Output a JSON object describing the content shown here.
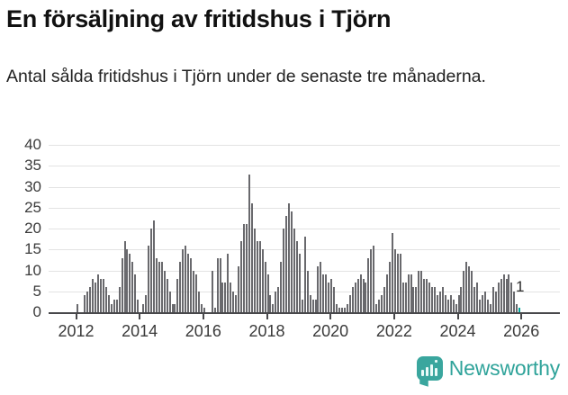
{
  "header": {
    "title": "En försäljning av fritidshus i Tjörn",
    "subtitle": "Antal sålda fritidshus i Tjörn under de senaste tre månaderna."
  },
  "chart_data": {
    "type": "bar",
    "title": "En försäljning av fritidshus i Tjörn",
    "xlabel": "",
    "ylabel": "",
    "x_start": "2012-01",
    "x_interval": "month",
    "values": [
      2,
      0,
      0,
      4,
      5,
      6,
      8,
      7,
      9,
      8,
      8,
      6,
      4,
      2,
      3,
      3,
      6,
      13,
      17,
      15,
      14,
      12,
      9,
      3,
      0,
      2,
      4,
      16,
      20,
      22,
      13,
      12,
      12,
      10,
      8,
      5,
      2,
      2,
      8,
      12,
      15,
      16,
      14,
      13,
      10,
      9,
      5,
      2,
      1,
      0,
      0,
      10,
      1,
      13,
      13,
      7,
      7,
      14,
      7,
      5,
      4,
      11,
      17,
      21,
      21,
      33,
      26,
      20,
      17,
      17,
      15,
      12,
      9,
      4,
      2,
      5,
      6,
      12,
      20,
      23,
      26,
      24,
      20,
      17,
      14,
      3,
      18,
      10,
      4,
      3,
      3,
      11,
      12,
      9,
      9,
      7,
      8,
      6,
      2,
      1,
      1,
      1,
      2,
      4,
      6,
      7,
      8,
      9,
      8,
      7,
      13,
      15,
      16,
      2,
      3,
      4,
      6,
      9,
      12,
      19,
      15,
      14,
      14,
      7,
      7,
      9,
      9,
      6,
      6,
      10,
      10,
      8,
      8,
      7,
      6,
      6,
      4,
      5,
      6,
      4,
      3,
      4,
      3,
      2,
      4,
      6,
      10,
      12,
      11,
      10,
      6,
      7,
      3,
      4,
      5,
      3,
      2,
      6,
      5,
      7,
      8,
      9,
      8,
      9,
      7,
      5,
      2,
      1
    ],
    "highlight_last_value": 1,
    "annotation_label": "1",
    "x_tick_labels": [
      "2012",
      "2014",
      "2016",
      "2018",
      "2020",
      "2022",
      "2024",
      "2026"
    ],
    "y_ticks": [
      0,
      5,
      10,
      15,
      20,
      25,
      30,
      35,
      40
    ],
    "ylim": [
      0,
      40
    ],
    "grid": true,
    "legend": "none",
    "bar_color": "#69696d",
    "highlight_color": "#00a49b"
  },
  "footer": {
    "brand": "Newsworthy",
    "brand_color": "#2fa39a",
    "logo_icon": "bar-chart-speech-bubble-icon"
  }
}
